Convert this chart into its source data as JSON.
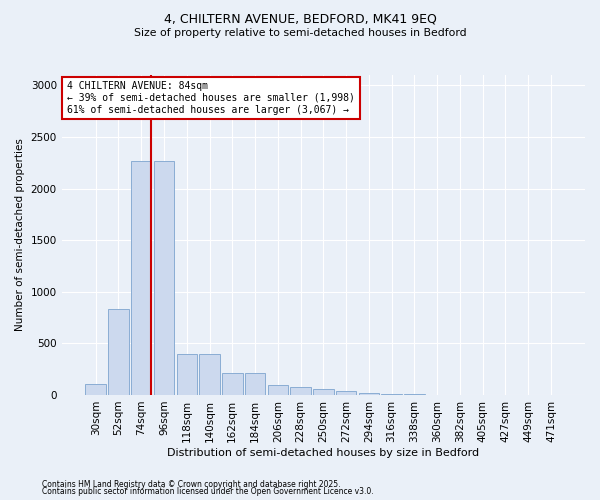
{
  "title_line1": "4, CHILTERN AVENUE, BEDFORD, MK41 9EQ",
  "title_line2": "Size of property relative to semi-detached houses in Bedford",
  "xlabel": "Distribution of semi-detached houses by size in Bedford",
  "ylabel": "Number of semi-detached properties",
  "categories": [
    "30sqm",
    "52sqm",
    "74sqm",
    "96sqm",
    "118sqm",
    "140sqm",
    "162sqm",
    "184sqm",
    "206sqm",
    "228sqm",
    "250sqm",
    "272sqm",
    "294sqm",
    "316sqm",
    "338sqm",
    "360sqm",
    "382sqm",
    "405sqm",
    "427sqm",
    "449sqm",
    "471sqm"
  ],
  "values": [
    105,
    835,
    2270,
    2270,
    400,
    400,
    210,
    210,
    100,
    75,
    55,
    40,
    20,
    10,
    5,
    3,
    2,
    2,
    1,
    1,
    1
  ],
  "bar_color": "#ccd9ee",
  "bar_edge_color": "#8aadd4",
  "vline_color": "#cc0000",
  "annotation_text": "4 CHILTERN AVENUE: 84sqm\n← 39% of semi-detached houses are smaller (1,998)\n61% of semi-detached houses are larger (3,067) →",
  "annotation_box_color": "#ffffff",
  "annotation_box_edge_color": "#cc0000",
  "background_color": "#eaf0f8",
  "grid_color": "#ffffff",
  "footnote_line1": "Contains HM Land Registry data © Crown copyright and database right 2025.",
  "footnote_line2": "Contains public sector information licensed under the Open Government Licence v3.0.",
  "ylim": [
    0,
    3100
  ],
  "yticks": [
    0,
    500,
    1000,
    1500,
    2000,
    2500,
    3000
  ]
}
